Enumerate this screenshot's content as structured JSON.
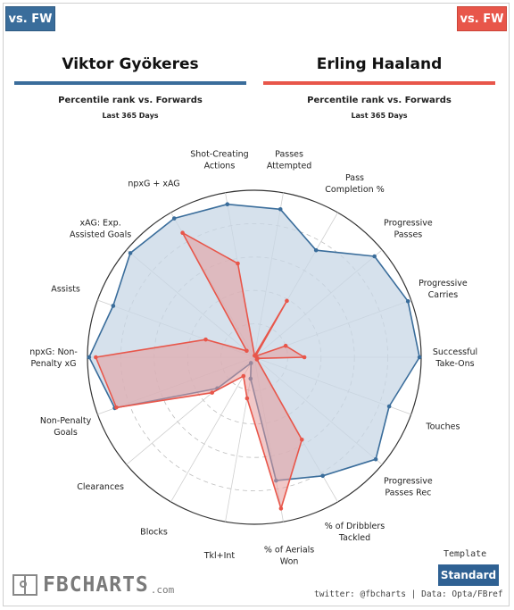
{
  "tags": {
    "left": "vs. FW",
    "right": "vs. FW"
  },
  "players": {
    "left": {
      "name": "Viktor Gyökeres",
      "subtitle": "Percentile rank vs. Forwards",
      "period": "Last 365 Days"
    },
    "right": {
      "name": "Erling Haaland",
      "subtitle": "Percentile rank vs. Forwards",
      "period": "Last 365 Days"
    }
  },
  "colors": {
    "left": "#3a6d9b",
    "right": "#e8564a",
    "left_fill": "#c8d7e6",
    "right_fill": "#e59a9a"
  },
  "template": {
    "label": "Template",
    "button": "Standard"
  },
  "logo": {
    "text": "FBCHARTS",
    "suffix": ".com"
  },
  "credit": "twitter: @fbcharts | Data: Opta/FBref",
  "chart_data": {
    "type": "radar",
    "rmax": 100,
    "grid_rings": [
      20,
      40,
      60,
      80,
      100
    ],
    "grid_style": "dashed",
    "categories": [
      [
        "Passes",
        "Attempted"
      ],
      [
        "Pass",
        "Completion %"
      ],
      [
        "Progressive",
        "Passes"
      ],
      [
        "Progressive",
        "Carries"
      ],
      [
        "Successful",
        "Take-Ons"
      ],
      [
        "Touches"
      ],
      [
        "Progressive",
        "Passes Rec"
      ],
      [
        "% of Dribblers",
        "Tackled"
      ],
      [
        "% of Aerials",
        "Won"
      ],
      [
        "Tkl+Int"
      ],
      [
        "Blocks"
      ],
      [
        "Clearances"
      ],
      [
        "Non-Penalty",
        "Goals"
      ],
      [
        "npxG: Non-",
        "Penalty xG"
      ],
      [
        "Assists"
      ],
      [
        "xAG: Exp.",
        "Assisted Goals"
      ],
      [
        "npxG + xAG"
      ],
      [
        "Shot-Creating",
        "Actions"
      ]
    ],
    "series": [
      {
        "name": "Viktor Gyökeres",
        "values": [
          90,
          74,
          94,
          98,
          99,
          86,
          95,
          82,
          75,
          13,
          4,
          29,
          89,
          99,
          90,
          97,
          96,
          93
        ]
      },
      {
        "name": "Erling Haaland",
        "values": [
          1,
          39,
          1,
          20,
          30,
          2,
          2,
          57,
          92,
          25,
          13,
          33,
          88,
          95,
          31,
          6,
          86,
          57
        ]
      }
    ]
  }
}
